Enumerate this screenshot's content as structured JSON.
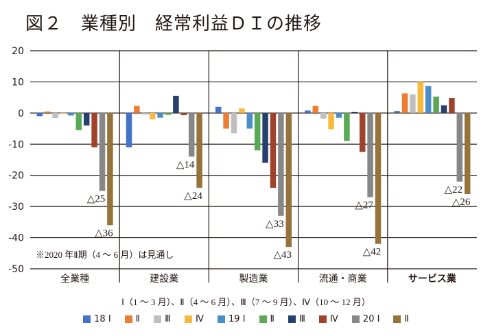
{
  "chart_data": {
    "type": "bar",
    "title": "図２　業種別　経常利益ＤＩの推移",
    "xlabel": "",
    "ylabel": "",
    "ylim": [
      -50,
      20
    ],
    "yticks": [
      20,
      10,
      0,
      -10,
      -20,
      -30,
      -40,
      -50
    ],
    "grid": true,
    "legend_position": "bottom",
    "categories": [
      "全業種",
      "建設業",
      "製造業",
      "流通・商業",
      "サービス業"
    ],
    "bold_categories": [
      "サービス業"
    ],
    "series": [
      {
        "name": "18Ⅰ",
        "legend_label": "18 Ⅰ",
        "color": "#4472c4",
        "values": [
          -1,
          -11,
          2,
          0.8,
          0.6
        ]
      },
      {
        "name": "18Ⅱ",
        "legend_label": "Ⅱ",
        "color": "#ed7d31",
        "values": [
          0.5,
          2.3,
          -5,
          2.3,
          6.3
        ]
      },
      {
        "name": "18Ⅲ",
        "legend_label": "Ⅲ",
        "color": "#bfbfbf",
        "values": [
          -1.6,
          -0.5,
          -6.5,
          -1.8,
          6
        ]
      },
      {
        "name": "18Ⅳ",
        "legend_label": "Ⅳ",
        "color": "#f9b93c",
        "values": [
          0,
          -2,
          1.5,
          -5.2,
          10
        ]
      },
      {
        "name": "19Ⅰ",
        "legend_label": "19 Ⅰ",
        "color": "#4a8ec8",
        "values": [
          -0.8,
          -1.5,
          -5,
          -1.5,
          8.7
        ]
      },
      {
        "name": "19Ⅱ",
        "legend_label": "Ⅱ",
        "color": "#5aaa55",
        "values": [
          -5.5,
          -0.6,
          -12,
          -9,
          5.3
        ]
      },
      {
        "name": "19Ⅲ",
        "legend_label": "Ⅲ",
        "color": "#26416f",
        "values": [
          -4,
          5.5,
          -16,
          0.4,
          2.5
        ]
      },
      {
        "name": "19Ⅳ",
        "legend_label": "Ⅳ",
        "color": "#a0432c",
        "values": [
          -11,
          -0.7,
          -24,
          -12.5,
          4.8
        ]
      },
      {
        "name": "20Ⅰ",
        "legend_label": "20 Ⅰ",
        "color": "#878787",
        "values": [
          -25,
          -14,
          -33,
          -27,
          -22
        ]
      },
      {
        "name": "20Ⅱ",
        "legend_label": "Ⅱ",
        "color": "#96733a",
        "values": [
          -36,
          -24,
          -43,
          -42,
          -26
        ]
      }
    ],
    "data_labels": [
      {
        "category": "全業種",
        "series": "20Ⅰ",
        "text": "△25"
      },
      {
        "category": "全業種",
        "series": "20Ⅱ",
        "text": "△36"
      },
      {
        "category": "建設業",
        "series": "20Ⅰ",
        "text": "△14"
      },
      {
        "category": "建設業",
        "series": "20Ⅱ",
        "text": "△24"
      },
      {
        "category": "製造業",
        "series": "20Ⅰ",
        "text": "△33"
      },
      {
        "category": "製造業",
        "series": "20Ⅱ",
        "text": "△43"
      },
      {
        "category": "流通・商業",
        "series": "20Ⅰ",
        "text": "△27"
      },
      {
        "category": "流通・商業",
        "series": "20Ⅱ",
        "text": "△42"
      },
      {
        "category": "サービス業",
        "series": "20Ⅰ",
        "text": "△22"
      },
      {
        "category": "サービス業",
        "series": "20Ⅱ",
        "text": "△26"
      }
    ],
    "annotation": "※2020 年Ⅱ期（4 ～ 6 月）は見通し",
    "quarter_note": "Ⅰ（1 ～ 3 月）、Ⅱ（4 ～ 6 月）、Ⅲ（7 ～ 9 月）、Ⅳ（10 ～ 12 月）"
  }
}
